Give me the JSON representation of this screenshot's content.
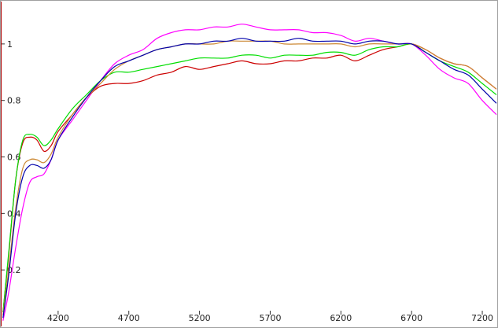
{
  "chart_data": {
    "type": "line",
    "title": "",
    "xlabel": "",
    "ylabel": "",
    "xlim": [
      3800,
      7300
    ],
    "ylim": [
      0,
      1.15
    ],
    "grid": false,
    "legend": "none",
    "x_ticks": [
      4200,
      4700,
      5200,
      5700,
      6200,
      6700,
      7200
    ],
    "y_ticks": [
      0.2,
      0.4,
      0.6,
      0.8,
      1
    ],
    "x_tick_labels": [
      "4200",
      "4700",
      "5200",
      "5700",
      "6200",
      "6700",
      "7200"
    ],
    "y_tick_labels": [
      "0.2",
      "0.4",
      "0.6",
      "0.8",
      "1"
    ],
    "series": [
      {
        "color": "#ff00ff",
        "x": [
          3810,
          3850,
          3900,
          3950,
          4000,
          4050,
          4100,
          4150,
          4200,
          4300,
          4400,
          4500,
          4600,
          4700,
          4800,
          4900,
          5000,
          5100,
          5200,
          5300,
          5400,
          5500,
          5600,
          5700,
          5800,
          5900,
          6000,
          6100,
          6200,
          6300,
          6400,
          6500,
          6600,
          6700,
          6800,
          6900,
          7000,
          7100,
          7200,
          7300
        ],
        "y": [
          0.02,
          0.12,
          0.28,
          0.42,
          0.51,
          0.53,
          0.54,
          0.59,
          0.66,
          0.73,
          0.8,
          0.87,
          0.93,
          0.96,
          0.98,
          1.02,
          1.04,
          1.05,
          1.05,
          1.06,
          1.06,
          1.07,
          1.06,
          1.05,
          1.05,
          1.05,
          1.04,
          1.04,
          1.03,
          1.01,
          1.02,
          1.01,
          1.0,
          1.0,
          0.96,
          0.91,
          0.88,
          0.86,
          0.8,
          0.75
        ]
      },
      {
        "color": "#cc0000",
        "x": [
          3810,
          3850,
          3900,
          3950,
          4000,
          4050,
          4100,
          4150,
          4200,
          4300,
          4400,
          4500,
          4600,
          4700,
          4800,
          4900,
          5000,
          5100,
          5200,
          5300,
          5400,
          5500,
          5600,
          5700,
          5800,
          5900,
          6000,
          6100,
          6200,
          6300,
          6400,
          6500,
          6600,
          6700,
          6800,
          6900,
          7000,
          7100,
          7200,
          7300
        ],
        "y": [
          0.05,
          0.25,
          0.52,
          0.65,
          0.67,
          0.66,
          0.62,
          0.64,
          0.69,
          0.75,
          0.81,
          0.85,
          0.86,
          0.86,
          0.87,
          0.89,
          0.9,
          0.92,
          0.91,
          0.92,
          0.93,
          0.94,
          0.93,
          0.93,
          0.94,
          0.94,
          0.95,
          0.95,
          0.96,
          0.94,
          0.96,
          0.98,
          0.99,
          1.0,
          0.98,
          0.95,
          0.93,
          0.92,
          0.88,
          0.84
        ]
      },
      {
        "color": "#00dd00",
        "x": [
          3810,
          3850,
          3900,
          3950,
          4000,
          4050,
          4100,
          4150,
          4200,
          4300,
          4400,
          4500,
          4600,
          4700,
          4800,
          4900,
          5000,
          5100,
          5200,
          5300,
          5400,
          5500,
          5600,
          5700,
          5800,
          5900,
          6000,
          6100,
          6200,
          6300,
          6400,
          6500,
          6600,
          6700,
          6800,
          6900,
          7000,
          7100,
          7200,
          7300
        ],
        "y": [
          0.05,
          0.26,
          0.52,
          0.66,
          0.68,
          0.67,
          0.64,
          0.66,
          0.7,
          0.77,
          0.82,
          0.87,
          0.9,
          0.9,
          0.91,
          0.92,
          0.93,
          0.94,
          0.95,
          0.95,
          0.95,
          0.96,
          0.96,
          0.95,
          0.96,
          0.96,
          0.96,
          0.97,
          0.97,
          0.96,
          0.98,
          0.99,
          0.99,
          1.0,
          0.97,
          0.94,
          0.92,
          0.9,
          0.86,
          0.82
        ]
      },
      {
        "color": "#cc8833",
        "x": [
          3810,
          3850,
          3900,
          3950,
          4000,
          4050,
          4100,
          4150,
          4200,
          4300,
          4400,
          4500,
          4600,
          4700,
          4800,
          4900,
          5000,
          5100,
          5200,
          5300,
          5400,
          5500,
          5600,
          5700,
          5800,
          5900,
          6000,
          6100,
          6200,
          6300,
          6400,
          6500,
          6600,
          6700,
          6800,
          6900,
          7000,
          7100,
          7200,
          7300
        ],
        "y": [
          0.04,
          0.2,
          0.42,
          0.56,
          0.59,
          0.59,
          0.58,
          0.61,
          0.67,
          0.75,
          0.81,
          0.86,
          0.91,
          0.94,
          0.96,
          0.98,
          0.99,
          1.0,
          1.0,
          1.0,
          1.01,
          1.01,
          1.01,
          1.01,
          1.0,
          1.0,
          1.0,
          1.0,
          1.0,
          0.99,
          1.0,
          1.0,
          1.0,
          1.0,
          0.98,
          0.95,
          0.93,
          0.92,
          0.88,
          0.84
        ]
      },
      {
        "color": "#0000aa",
        "x": [
          3810,
          3850,
          3900,
          3950,
          4000,
          4050,
          4100,
          4150,
          4200,
          4300,
          4400,
          4500,
          4600,
          4700,
          4800,
          4900,
          5000,
          5100,
          5200,
          5300,
          5400,
          5500,
          5600,
          5700,
          5800,
          5900,
          6000,
          6100,
          6200,
          6300,
          6400,
          6500,
          6600,
          6700,
          6800,
          6900,
          7000,
          7100,
          7200,
          7300
        ],
        "y": [
          0.03,
          0.18,
          0.4,
          0.53,
          0.57,
          0.57,
          0.56,
          0.59,
          0.66,
          0.74,
          0.81,
          0.87,
          0.92,
          0.94,
          0.96,
          0.98,
          0.99,
          1.0,
          1.0,
          1.01,
          1.01,
          1.02,
          1.01,
          1.01,
          1.01,
          1.02,
          1.01,
          1.01,
          1.01,
          1.0,
          1.01,
          1.01,
          1.0,
          1.0,
          0.97,
          0.94,
          0.91,
          0.89,
          0.84,
          0.79
        ]
      }
    ]
  }
}
